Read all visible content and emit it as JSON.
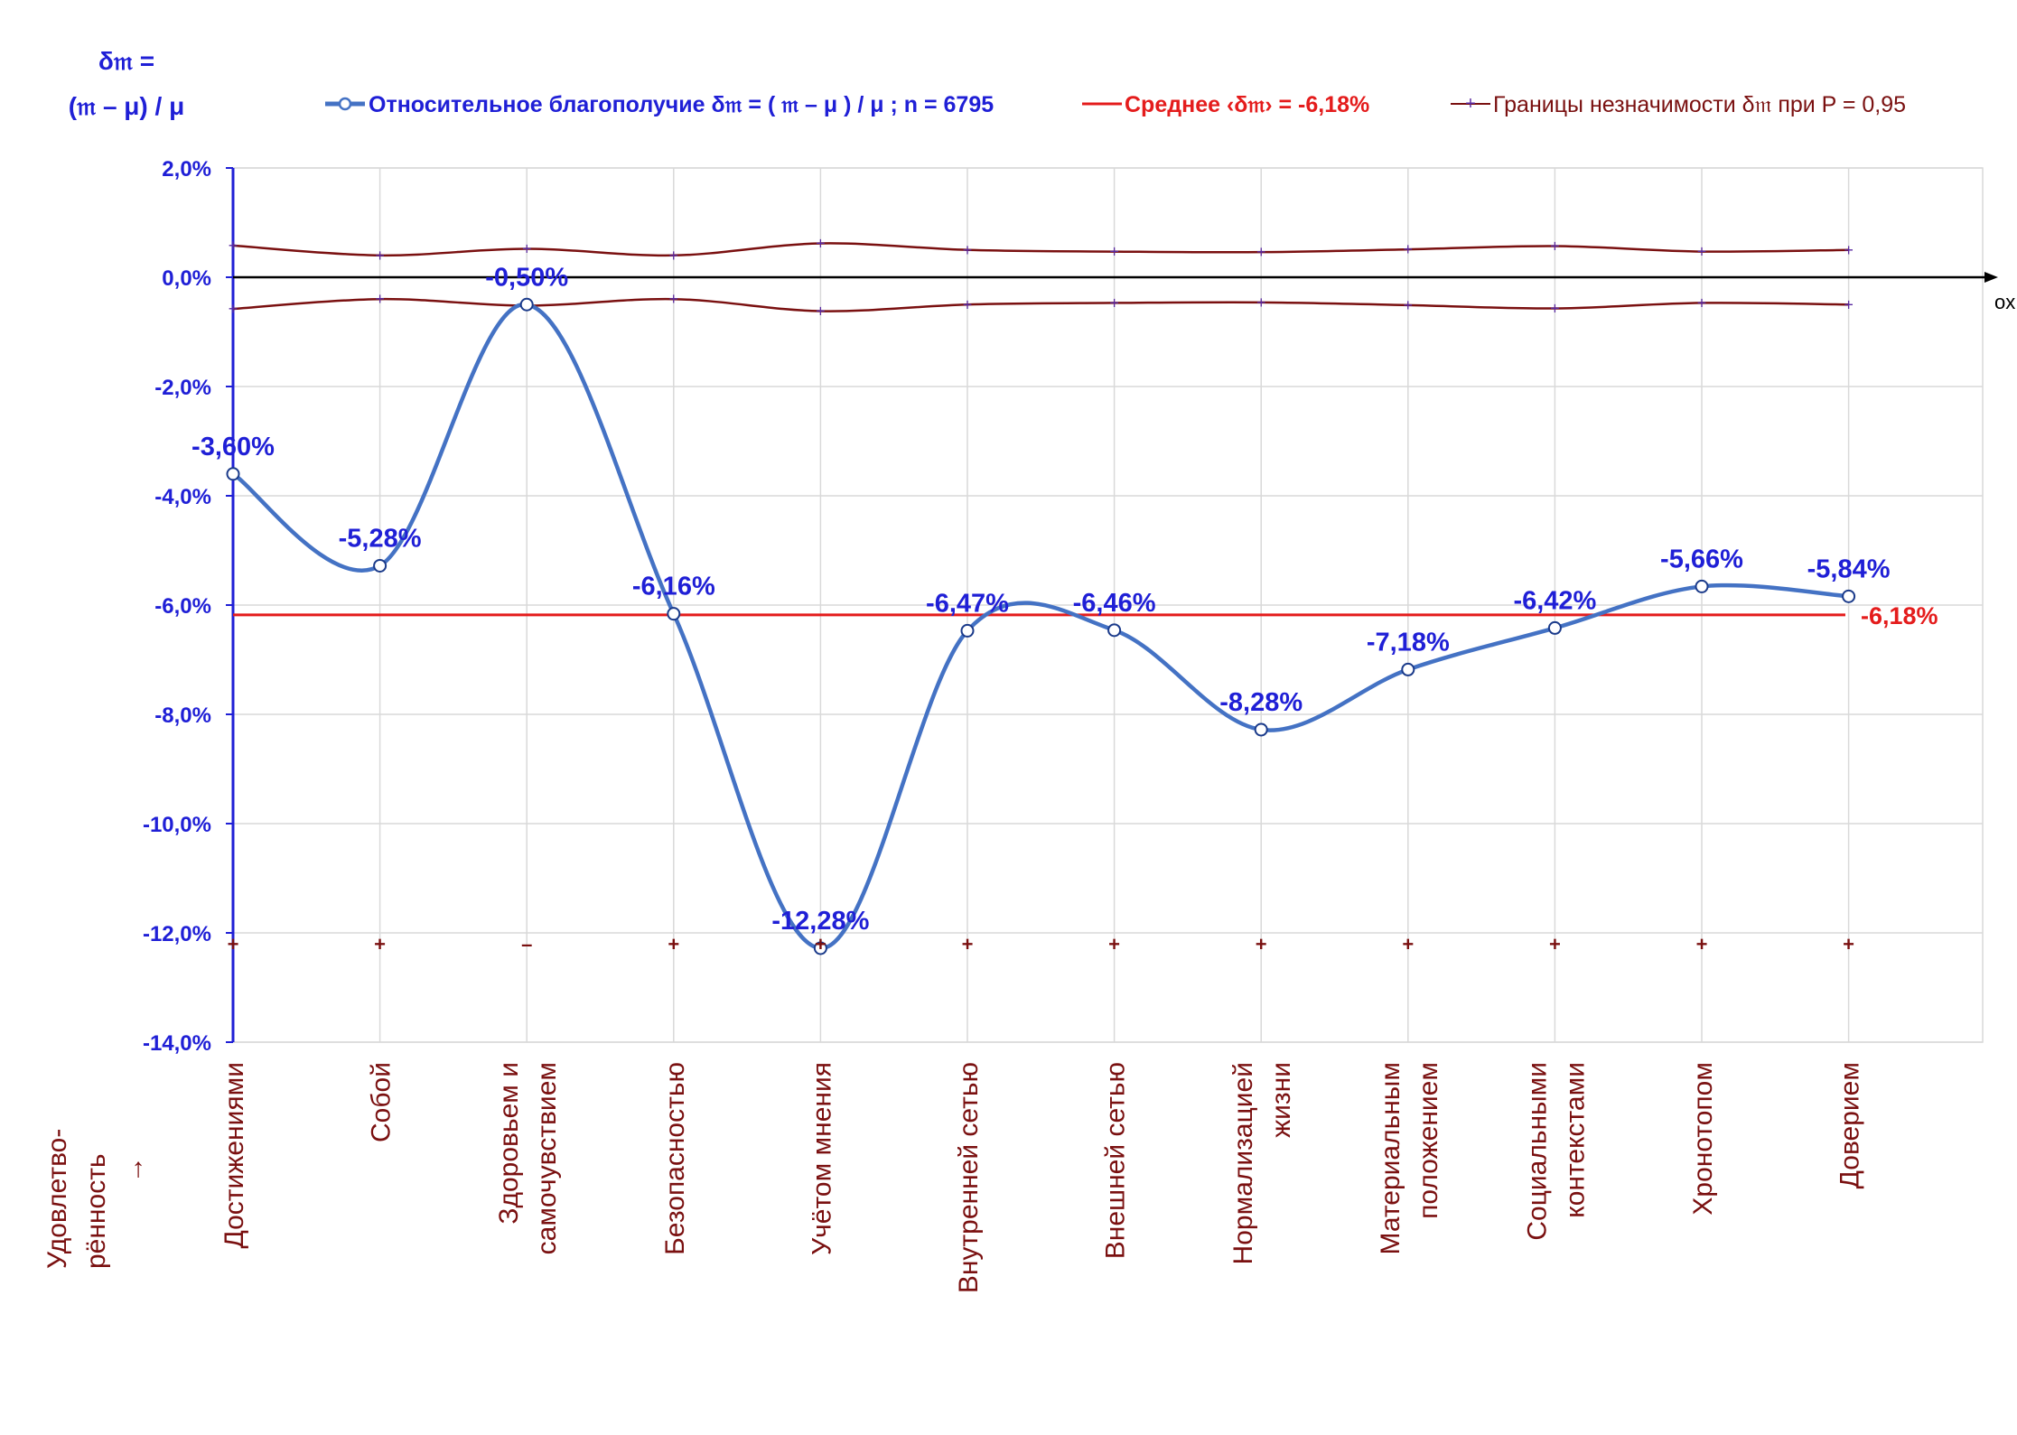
{
  "y_axis_title": [
    "δ𝔪 =",
    "(𝔪 – μ) / μ"
  ],
  "x_axis_name": "ox",
  "x_side_caption": [
    "Удовлетво-",
    "рённость",
    "→"
  ],
  "legend": {
    "series": "Относительное благополучие δ𝔪 = ( 𝔪 – μ ) / μ ; n = 6795",
    "mean": "Среднее ‹δ𝔪› = -6,18%",
    "bounds": "Границы незначимости δ𝔪 при P = 0,95"
  },
  "colors": {
    "series": "#4472c4",
    "mean": "#e41c1c",
    "bounds": "#7a1010",
    "labels": "#1f1fd6",
    "axis": "#1f1fd6"
  },
  "chart_data": {
    "type": "line",
    "categories": [
      [
        "Достижениями"
      ],
      [
        "Собой"
      ],
      [
        "Здоровьем и",
        "самочувствием"
      ],
      [
        "Безопасностью"
      ],
      [
        "Учётом мнения"
      ],
      [
        "Внутренней сетью"
      ],
      [
        "Внешней сетью"
      ],
      [
        "Нормализацией",
        "жизни"
      ],
      [
        "Материальным",
        "положением"
      ],
      [
        "Социальными",
        "контекстами"
      ],
      [
        "Хронотопом"
      ],
      [
        "Доверием"
      ]
    ],
    "series": [
      {
        "name": "Относительное благополучие δ𝔪 = ( 𝔪 – μ ) / μ ; n = 6795",
        "values": [
          -3.6,
          -5.28,
          -0.5,
          -6.16,
          -12.28,
          -6.47,
          -6.46,
          -8.28,
          -7.18,
          -6.42,
          -5.66,
          -5.84
        ],
        "labels": [
          "-3,60%",
          "-5,28%",
          "-0,50%",
          "-6,16%",
          "-12,28%",
          "-6,47%",
          "-6,46%",
          "-8,28%",
          "-7,18%",
          "-6,42%",
          "-5,66%",
          "-5,84%"
        ]
      },
      {
        "name": "Границы незначимости δ𝔪 при P = 0,95",
        "upper": [
          0.58,
          0.4,
          0.52,
          0.4,
          0.62,
          0.5,
          0.47,
          0.46,
          0.51,
          0.57,
          0.47,
          0.5
        ],
        "lower": [
          -0.58,
          -0.4,
          -0.52,
          -0.4,
          -0.62,
          -0.5,
          -0.47,
          -0.46,
          -0.51,
          -0.57,
          -0.47,
          -0.5
        ]
      }
    ],
    "mean": {
      "value": -6.18,
      "label": "-6,18%"
    },
    "significance_marks": [
      "+",
      "+",
      "–",
      "+",
      "+",
      "+",
      "+",
      "+",
      "+",
      "+",
      "+",
      "+"
    ],
    "ylim": [
      -14,
      2
    ],
    "yticks": [
      2,
      0,
      -2,
      -4,
      -6,
      -8,
      -10,
      -12,
      -14
    ],
    "ytick_labels": [
      "2,0%",
      "0,0%",
      "-2,0%",
      "-4,0%",
      "-6,0%",
      "-8,0%",
      "-10,0%",
      "-12,0%",
      "-14,0%"
    ],
    "grid": true,
    "legend_position": "top"
  }
}
